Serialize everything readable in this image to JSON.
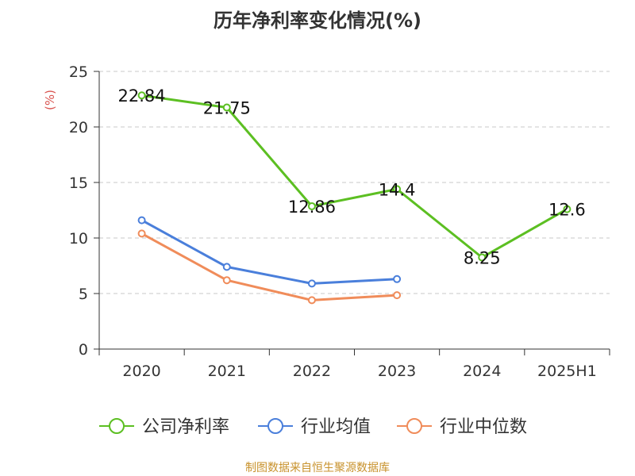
{
  "chart_data": {
    "type": "line",
    "title": "历年净利率变化情况(%)",
    "ylabel": "(%)",
    "xlabel": "",
    "ylim": [
      0,
      25
    ],
    "yticks": [
      0,
      5,
      10,
      15,
      20,
      25
    ],
    "categories": [
      "2020",
      "2021",
      "2022",
      "2023",
      "2024",
      "2025H1"
    ],
    "grid": true,
    "legend_position": "bottom",
    "series": [
      {
        "name": "公司净利率",
        "color": "#5cbf22",
        "values": [
          22.84,
          21.75,
          12.86,
          14.4,
          8.25,
          12.6
        ],
        "labels": [
          "22.84",
          "21.75",
          "12.86",
          "14.4",
          "8.25",
          "12.6"
        ]
      },
      {
        "name": "行业均值",
        "color": "#4a7fdb",
        "values": [
          11.6,
          7.4,
          5.9,
          6.3,
          null,
          null
        ]
      },
      {
        "name": "行业中位数",
        "color": "#f08c5a",
        "values": [
          10.4,
          6.2,
          4.4,
          4.85,
          null,
          null
        ]
      }
    ]
  },
  "source": {
    "text": "制图数据来自恒生聚源数据库",
    "color": "#c8922c"
  },
  "ylabel_color": "#d9534f"
}
